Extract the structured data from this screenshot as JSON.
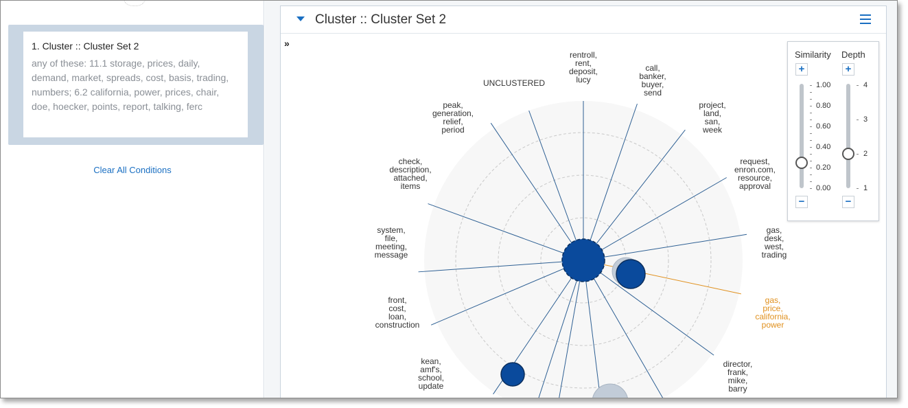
{
  "sidebar": {
    "condition": {
      "title": "1. Cluster :: Cluster Set 2",
      "description": "any of these: 11.1 storage, prices, daily, demand, market, spreads, cost, basis, trading, numbers; 6.2 california, power, prices, chair, doe, hoecker, points, report, talking, ferc"
    },
    "clear_label": "Clear All Conditions"
  },
  "panel": {
    "title": "Cluster :: Cluster Set 2",
    "expand_symbol": "»"
  },
  "wheel": {
    "unclustered_label": "UNCLUSTERED",
    "spoke_color": "#2d5f93",
    "highlight_color": "#e0901d",
    "node_color": "#0a4a9c",
    "clusters": [
      {
        "lines": [
          "rentroll,",
          "rent,",
          "deposit,",
          "lucy"
        ],
        "highlight": false
      },
      {
        "lines": [
          "call,",
          "banker,",
          "buyer,",
          "send"
        ],
        "highlight": false
      },
      {
        "lines": [
          "project,",
          "land,",
          "san,",
          "week"
        ],
        "highlight": false
      },
      {
        "lines": [
          "request,",
          "enron.com,",
          "resource,",
          "approval"
        ],
        "highlight": false
      },
      {
        "lines": [
          "gas,",
          "desk,",
          "west,",
          "trading"
        ],
        "highlight": false
      },
      {
        "lines": [
          "gas,",
          "price,",
          "california,",
          "power"
        ],
        "highlight": true
      },
      {
        "lines": [
          "director,",
          "frank,",
          "mike,",
          "barry"
        ],
        "highlight": false
      },
      {
        "lines": [
          "kean,",
          "amf's,",
          "school,",
          "update"
        ],
        "highlight": false
      },
      {
        "lines": [
          "front,",
          "cost,",
          "loan,",
          "construction"
        ],
        "highlight": false
      },
      {
        "lines": [
          "system,",
          "file,",
          "meeting,",
          "message"
        ],
        "highlight": false
      },
      {
        "lines": [
          "check,",
          "description,",
          "attached,",
          "items"
        ],
        "highlight": false
      },
      {
        "lines": [
          "peak,",
          "generation,",
          "relief,",
          "period"
        ],
        "highlight": false
      }
    ]
  },
  "controls": {
    "similarity": {
      "label": "Similarity",
      "ticks": [
        "1.00",
        "0.80",
        "0.60",
        "0.40",
        "0.20",
        "0.00"
      ],
      "value": 0.25,
      "plus": "+",
      "minus": "−"
    },
    "depth": {
      "label": "Depth",
      "ticks": [
        "4",
        "3",
        "2",
        "1"
      ],
      "value": 2,
      "plus": "+",
      "minus": "−"
    }
  }
}
